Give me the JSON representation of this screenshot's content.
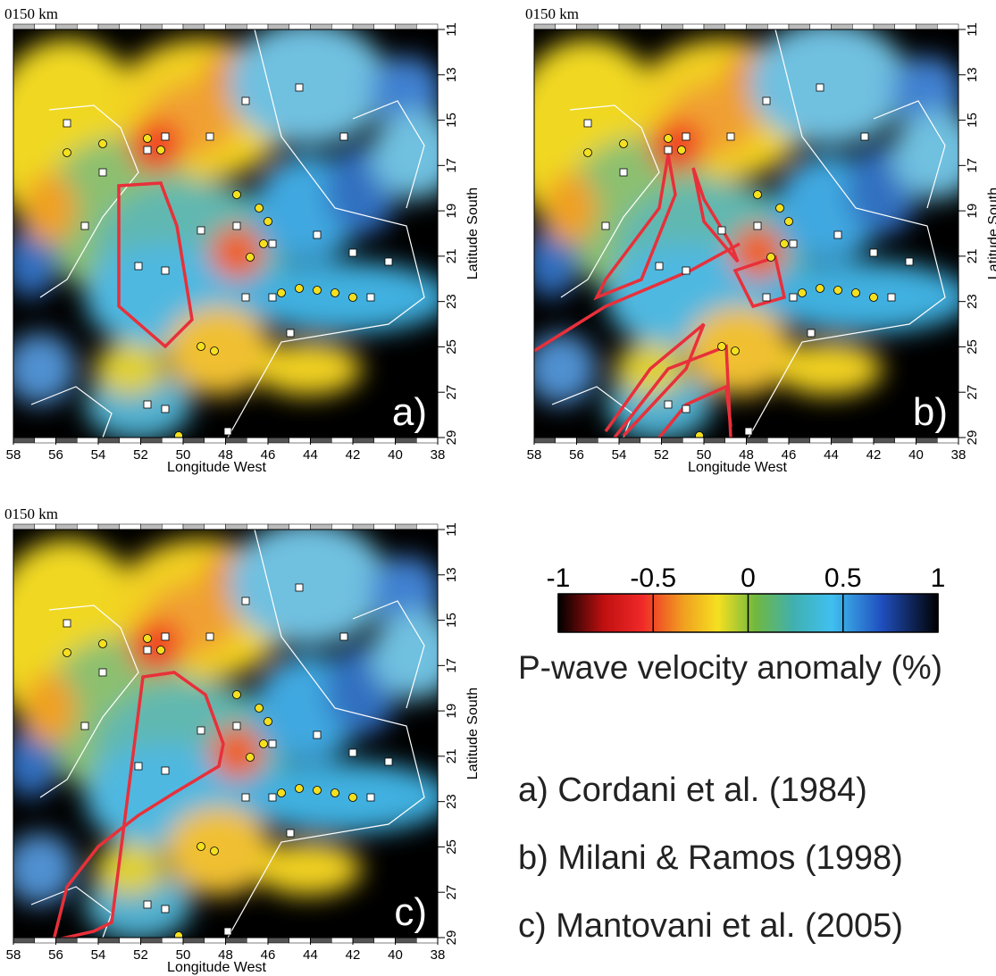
{
  "panels": [
    {
      "label": "a)",
      "scale_label": "0150 km",
      "xlabel": "Longitude West",
      "ylabel": "Latitude South",
      "xlim": [
        58,
        38
      ],
      "ylim": [
        11,
        29
      ],
      "xticks": [
        58,
        56,
        54,
        52,
        50,
        48,
        46,
        44,
        42,
        40,
        38
      ],
      "yticks": [
        11,
        13,
        15,
        17,
        19,
        21,
        23,
        25,
        27,
        29
      ]
    },
    {
      "label": "b)",
      "scale_label": "0150 km",
      "xlabel": "Longitude West",
      "ylabel": "Latitude South",
      "xlim": [
        58,
        38
      ],
      "ylim": [
        11,
        29
      ],
      "xticks": [
        58,
        56,
        54,
        52,
        50,
        48,
        46,
        44,
        42,
        40,
        38
      ],
      "yticks": [
        11,
        13,
        15,
        17,
        19,
        21,
        23,
        25,
        27,
        29
      ]
    },
    {
      "label": "c)",
      "scale_label": "0150 km",
      "xlabel": "Longitude West",
      "ylabel": "Latitude South",
      "xlim": [
        58,
        38
      ],
      "ylim": [
        11,
        29
      ],
      "xticks": [
        58,
        56,
        54,
        52,
        50,
        48,
        46,
        44,
        42,
        40,
        38
      ],
      "yticks": [
        11,
        13,
        15,
        17,
        19,
        21,
        23,
        25,
        27,
        29
      ]
    }
  ],
  "colorbar": {
    "lim": [
      -1,
      1
    ],
    "ticks": [
      -1,
      -0.5,
      0,
      0.5,
      1
    ],
    "title": "P-wave velocity anomaly (%)"
  },
  "legend": [
    "a) Cordani et al. (1984)",
    "b) Milani & Ramos (1998)",
    "c) Mantovani et al. (2005)"
  ]
}
